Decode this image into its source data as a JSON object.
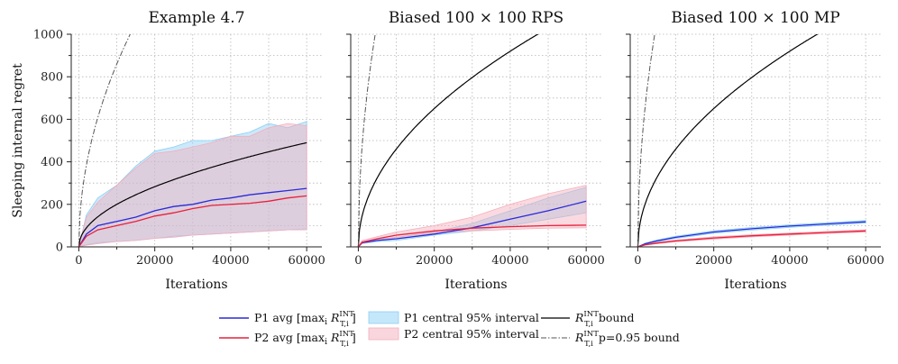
{
  "chart_data": [
    {
      "type": "line",
      "title": "Example 4.7",
      "xlabel": "Iterations",
      "ylabel": "Sleeping internal regret",
      "xlim": [
        -2000,
        64000
      ],
      "ylim": [
        0,
        1000
      ],
      "xticks": [
        0,
        20000,
        40000,
        60000
      ],
      "yticks": [
        0,
        200,
        400,
        600,
        800,
        1000
      ],
      "series": [
        {
          "name": "P1 avg",
          "color": "#2a2ad8",
          "x": [
            0,
            2000,
            5000,
            10000,
            15000,
            20000,
            25000,
            30000,
            35000,
            40000,
            45000,
            50000,
            55000,
            60000
          ],
          "y": [
            0,
            60,
            100,
            120,
            140,
            170,
            190,
            200,
            220,
            230,
            245,
            255,
            265,
            275
          ]
        },
        {
          "name": "P2 avg",
          "color": "#e8203c",
          "x": [
            0,
            2000,
            5000,
            10000,
            15000,
            20000,
            25000,
            30000,
            35000,
            40000,
            45000,
            50000,
            55000,
            60000
          ],
          "y": [
            0,
            50,
            80,
            100,
            120,
            145,
            160,
            180,
            195,
            200,
            205,
            215,
            230,
            240
          ]
        },
        {
          "name": "P1 central 95% interval",
          "color": "#8ccff5",
          "x": [
            0,
            2000,
            5000,
            10000,
            15000,
            20000,
            25000,
            30000,
            35000,
            40000,
            45000,
            50000,
            55000,
            60000
          ],
          "lower": [
            0,
            10,
            20,
            25,
            30,
            40,
            50,
            55,
            60,
            65,
            70,
            75,
            80,
            85
          ],
          "upper": [
            0,
            150,
            230,
            290,
            380,
            450,
            470,
            500,
            500,
            520,
            540,
            580,
            560,
            590
          ]
        },
        {
          "name": "P2 central 95% interval",
          "color": "#f4aebb",
          "x": [
            0,
            2000,
            5000,
            10000,
            15000,
            20000,
            25000,
            30000,
            35000,
            40000,
            45000,
            50000,
            55000,
            60000
          ],
          "lower": [
            0,
            8,
            15,
            25,
            30,
            40,
            45,
            55,
            60,
            65,
            70,
            75,
            80,
            80
          ],
          "upper": [
            0,
            140,
            210,
            290,
            370,
            440,
            450,
            470,
            490,
            520,
            520,
            560,
            580,
            570
          ]
        },
        {
          "name": "R bound",
          "color": "#000000",
          "curve": "sqrt",
          "k": 2.0
        },
        {
          "name": "p=0.95 bound",
          "color": "#555555",
          "curve": "sqrt",
          "k": 8.6
        }
      ]
    },
    {
      "type": "line",
      "title": "Biased 100 × 100 RPS",
      "xlabel": "Iterations",
      "ylabel": "",
      "xlim": [
        -2000,
        64000
      ],
      "ylim": [
        0,
        1000
      ],
      "xticks": [
        0,
        20000,
        40000,
        60000
      ],
      "yticks": [
        0,
        200,
        400,
        600,
        800,
        1000
      ],
      "series": [
        {
          "name": "P1 avg",
          "color": "#2a2ad8",
          "x": [
            0,
            1000,
            5000,
            10000,
            20000,
            30000,
            40000,
            50000,
            60000
          ],
          "y": [
            0,
            20,
            30,
            38,
            60,
            90,
            130,
            170,
            215
          ]
        },
        {
          "name": "P2 avg",
          "color": "#e8203c",
          "x": [
            0,
            1000,
            5000,
            10000,
            20000,
            30000,
            40000,
            50000,
            60000
          ],
          "y": [
            0,
            22,
            38,
            55,
            75,
            88,
            95,
            100,
            102
          ]
        },
        {
          "name": "P1 central 95% interval",
          "color": "#8ccff5",
          "x": [
            0,
            1000,
            5000,
            10000,
            20000,
            30000,
            40000,
            50000,
            60000
          ],
          "lower": [
            0,
            15,
            25,
            30,
            55,
            75,
            100,
            130,
            160
          ],
          "upper": [
            0,
            25,
            35,
            45,
            70,
            110,
            170,
            230,
            280
          ]
        },
        {
          "name": "P2 central 95% interval",
          "color": "#f4aebb",
          "x": [
            0,
            1000,
            5000,
            10000,
            20000,
            30000,
            40000,
            50000,
            60000
          ],
          "lower": [
            0,
            15,
            30,
            45,
            65,
            75,
            82,
            88,
            90
          ],
          "upper": [
            0,
            30,
            48,
            70,
            100,
            140,
            200,
            250,
            290
          ]
        },
        {
          "name": "R bound",
          "color": "#000000",
          "curve": "sqrt",
          "k": 4.6
        },
        {
          "name": "p=0.95 bound",
          "color": "#555555",
          "curve": "sqrt",
          "k": 15.0
        }
      ]
    },
    {
      "type": "line",
      "title": "Biased 100 × 100 MP",
      "xlabel": "Iterations",
      "ylabel": "",
      "xlim": [
        -2000,
        64000
      ],
      "ylim": [
        0,
        1000
      ],
      "xticks": [
        0,
        20000,
        40000,
        60000
      ],
      "yticks": [
        0,
        200,
        400,
        600,
        800,
        1000
      ],
      "series": [
        {
          "name": "P1 avg",
          "color": "#2a2ad8",
          "x": [
            0,
            2000,
            5000,
            10000,
            20000,
            30000,
            40000,
            50000,
            60000
          ],
          "y": [
            0,
            15,
            28,
            45,
            70,
            85,
            98,
            108,
            118
          ]
        },
        {
          "name": "P2 avg",
          "color": "#e8203c",
          "x": [
            0,
            2000,
            5000,
            10000,
            20000,
            30000,
            40000,
            50000,
            60000
          ],
          "y": [
            0,
            10,
            18,
            28,
            42,
            52,
            60,
            68,
            75
          ]
        },
        {
          "name": "P1 central 95% interval",
          "color": "#8ccff5",
          "x": [
            0,
            2000,
            5000,
            10000,
            20000,
            30000,
            40000,
            50000,
            60000
          ],
          "lower": [
            0,
            12,
            24,
            40,
            64,
            79,
            92,
            102,
            112
          ],
          "upper": [
            0,
            18,
            32,
            50,
            76,
            91,
            104,
            114,
            124
          ]
        },
        {
          "name": "P2 central 95% interval",
          "color": "#f4aebb",
          "x": [
            0,
            2000,
            5000,
            10000,
            20000,
            30000,
            40000,
            50000,
            60000
          ],
          "lower": [
            0,
            8,
            15,
            24,
            37,
            47,
            55,
            63,
            70
          ],
          "upper": [
            0,
            12,
            21,
            32,
            47,
            57,
            65,
            73,
            80
          ]
        },
        {
          "name": "R bound",
          "color": "#000000",
          "curve": "sqrt",
          "k": 4.6
        },
        {
          "name": "p=0.95 bound",
          "color": "#555555",
          "curve": "sqrt",
          "k": 15.0
        }
      ]
    }
  ],
  "legend": {
    "placement": "bottom-center",
    "p1_avg": "P1 avg [max",
    "p2_avg": "P2 avg [max",
    "p1_interval": "P1 central 95% interval",
    "p2_interval": "P2 central 95% interval",
    "r_bound": "bound",
    "p95_bound": "p=0.95 bound",
    "sub_i": "i",
    "r_symbol": "R",
    "sup_int": "INT",
    "sub_ti": "T,i",
    "close_bracket": "]"
  }
}
